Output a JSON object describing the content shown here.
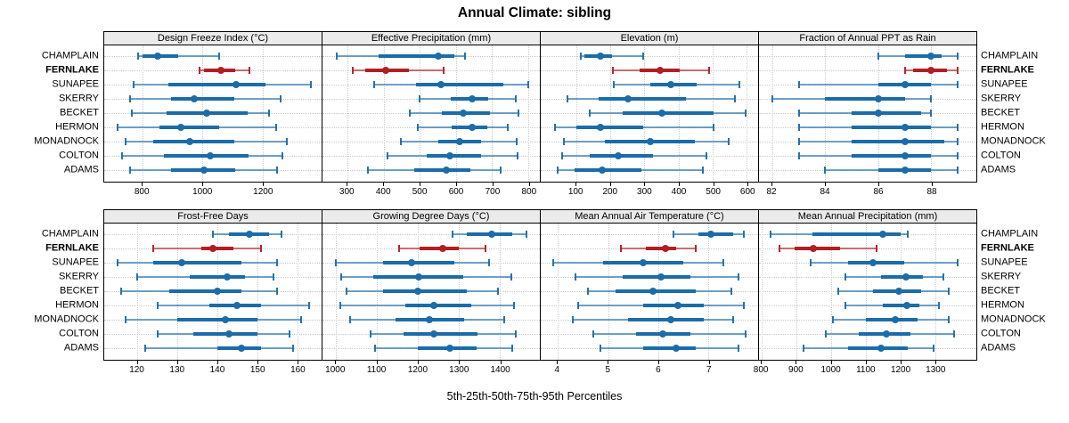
{
  "title": "Annual Climate: sibling",
  "footer": "5th-25th-50th-75th-95th Percentiles",
  "sites": [
    "CHAMPLAIN",
    "FERNLAKE",
    "SUNAPEE",
    "SKERRY",
    "BECKET",
    "HERMON",
    "MONADNOCK",
    "COLTON",
    "ADAMS"
  ],
  "highlight_site": "FERNLAKE",
  "colors": {
    "series": "#1b6ca8",
    "highlight": "#b01f24",
    "strip_bg": "#ebebeb",
    "grid": "#c9c9c9",
    "axis": "#000000"
  },
  "chart_data": {
    "type": "dotplot",
    "subtype": "percentile-intervals",
    "percentile_labels": [
      "5th",
      "25th",
      "50th",
      "75th",
      "95th"
    ],
    "legend_note": "5th-25th-50th-75th-95th Percentiles",
    "categories": [
      "CHAMPLAIN",
      "FERNLAKE",
      "SUNAPEE",
      "SKERRY",
      "BECKET",
      "HERMON",
      "MONADNOCK",
      "COLTON",
      "ADAMS"
    ],
    "panels": [
      {
        "title": "Design Freeze Index (°C)",
        "grid_row": 0,
        "grid_col": 0,
        "xmin": 673,
        "xmax": 1396,
        "ticks": [
          800,
          1000,
          1200
        ],
        "values": [
          [
            785,
            800,
            851,
            920,
            1055
          ],
          [
            990,
            1005,
            1060,
            1110,
            1155
          ],
          [
            770,
            885,
            1113,
            1210,
            1360
          ],
          [
            758,
            895,
            973,
            1105,
            1260
          ],
          [
            765,
            880,
            1013,
            1150,
            1220
          ],
          [
            717,
            856,
            927,
            1054,
            1245
          ],
          [
            745,
            835,
            957,
            1105,
            1280
          ],
          [
            733,
            873,
            1027,
            1152,
            1265
          ],
          [
            760,
            895,
            1005,
            1110,
            1248
          ]
        ]
      },
      {
        "title": "Effective Precipitation (mm)",
        "grid_row": 0,
        "grid_col": 1,
        "xmin": 231,
        "xmax": 832,
        "ticks": [
          300,
          400,
          500,
          600,
          700,
          800
        ],
        "values": [
          [
            270,
            385,
            550,
            595,
            625
          ],
          [
            315,
            350,
            405,
            470,
            565
          ],
          [
            375,
            490,
            558,
            730,
            800
          ],
          [
            500,
            585,
            645,
            690,
            765
          ],
          [
            473,
            560,
            620,
            695,
            772
          ],
          [
            494,
            588,
            645,
            686,
            744
          ],
          [
            448,
            551,
            611,
            670,
            768
          ],
          [
            410,
            518,
            584,
            670,
            771
          ],
          [
            356,
            485,
            574,
            641,
            723
          ]
        ]
      },
      {
        "title": "Elevation (m)",
        "grid_row": 0,
        "grid_col": 2,
        "xmin": -4,
        "xmax": 633,
        "ticks": [
          100,
          200,
          300,
          400,
          500,
          600
        ],
        "values": [
          [
            113,
            125,
            172,
            205,
            296
          ],
          [
            207,
            285,
            346,
            404,
            490
          ],
          [
            211,
            317,
            378,
            452,
            577
          ],
          [
            74,
            165,
            252,
            422,
            565
          ],
          [
            139,
            235,
            352,
            503,
            596
          ],
          [
            37,
            100,
            170,
            296,
            503
          ],
          [
            65,
            183,
            316,
            448,
            548
          ],
          [
            59,
            139,
            224,
            326,
            481
          ],
          [
            46,
            96,
            176,
            291,
            472
          ]
        ]
      },
      {
        "title": "Fraction of Annual PPT as Rain",
        "grid_row": 0,
        "grid_col": 3,
        "xmin": 81.5,
        "xmax": 89.7,
        "ticks": [
          82,
          84,
          86,
          88
        ],
        "values": [
          [
            86,
            87,
            88,
            88.4,
            89
          ],
          [
            87,
            87.3,
            88,
            88.6,
            89
          ],
          [
            83,
            86,
            87,
            88,
            89
          ],
          [
            82,
            84,
            86,
            87,
            88
          ],
          [
            83,
            85,
            86,
            87.6,
            88
          ],
          [
            83,
            85,
            87,
            88,
            89
          ],
          [
            83,
            85,
            87,
            88.5,
            89
          ],
          [
            83,
            85,
            87,
            88,
            89
          ],
          [
            84,
            86,
            87,
            88,
            89
          ]
        ]
      },
      {
        "title": "Frost-Free Days",
        "grid_row": 1,
        "grid_col": 0,
        "xmin": 111.7,
        "xmax": 166.1,
        "ticks": [
          120,
          130,
          140,
          150,
          160
        ],
        "values": [
          [
            139,
            143,
            148,
            153,
            156
          ],
          [
            124,
            136,
            139,
            144,
            151
          ],
          [
            115,
            124,
            131,
            146,
            155
          ],
          [
            120,
            133,
            142.5,
            147,
            154
          ],
          [
            116,
            128,
            140,
            146,
            155
          ],
          [
            125,
            138,
            145,
            151,
            163
          ],
          [
            117,
            130,
            142,
            150,
            161
          ],
          [
            125,
            134,
            143,
            150,
            158
          ],
          [
            122,
            140,
            146,
            151,
            159
          ]
        ]
      },
      {
        "title": "Growing Degree Days (°C)",
        "grid_row": 1,
        "grid_col": 1,
        "xmin": 967,
        "xmax": 1498,
        "ticks": [
          1000,
          1100,
          1200,
          1300,
          1400
        ],
        "values": [
          [
            1285,
            1320,
            1380,
            1430,
            1465
          ],
          [
            1155,
            1205,
            1260,
            1300,
            1365
          ],
          [
            1000,
            1115,
            1185,
            1290,
            1375
          ],
          [
            1012,
            1090,
            1203,
            1310,
            1428
          ],
          [
            1025,
            1115,
            1200,
            1320,
            1395
          ],
          [
            1010,
            1170,
            1240,
            1330,
            1435
          ],
          [
            1035,
            1145,
            1228,
            1312,
            1410
          ],
          [
            1085,
            1165,
            1240,
            1345,
            1440
          ],
          [
            1095,
            1200,
            1278,
            1343,
            1430
          ]
        ]
      },
      {
        "title": "Mean Annual Air Temperature (°C)",
        "grid_row": 1,
        "grid_col": 2,
        "xmin": 3.66,
        "xmax": 7.99,
        "ticks": [
          4,
          5,
          6,
          7
        ],
        "values": [
          [
            6.3,
            6.8,
            7.05,
            7.5,
            7.7
          ],
          [
            5.25,
            5.75,
            6.15,
            6.35,
            6.75
          ],
          [
            3.9,
            4.9,
            5.7,
            6.5,
            7.3
          ],
          [
            4.35,
            5.3,
            6.05,
            6.65,
            7.6
          ],
          [
            4.6,
            5.15,
            5.9,
            6.75,
            7.45
          ],
          [
            4.4,
            5.7,
            6.4,
            6.9,
            7.7
          ],
          [
            4.3,
            5.4,
            6.25,
            6.9,
            7.5
          ],
          [
            4.7,
            5.55,
            6.1,
            6.65,
            7.75
          ],
          [
            4.85,
            5.7,
            6.35,
            6.75,
            7.6
          ]
        ]
      },
      {
        "title": "Mean Annual Precipitation (mm)",
        "grid_row": 1,
        "grid_col": 3,
        "xmin": 792,
        "xmax": 1419,
        "ticks": [
          800,
          900,
          1000,
          1100,
          1200,
          1300
        ],
        "values": [
          [
            825,
            945,
            1150,
            1200,
            1220
          ],
          [
            850,
            895,
            950,
            1025,
            1130
          ],
          [
            940,
            1050,
            1120,
            1210,
            1365
          ],
          [
            1040,
            1145,
            1215,
            1265,
            1325
          ],
          [
            1020,
            1120,
            1195,
            1260,
            1340
          ],
          [
            1040,
            1150,
            1218,
            1255,
            1310
          ],
          [
            1005,
            1100,
            1185,
            1250,
            1340
          ],
          [
            985,
            1080,
            1160,
            1230,
            1355
          ],
          [
            920,
            1050,
            1143,
            1220,
            1295
          ]
        ]
      }
    ]
  }
}
